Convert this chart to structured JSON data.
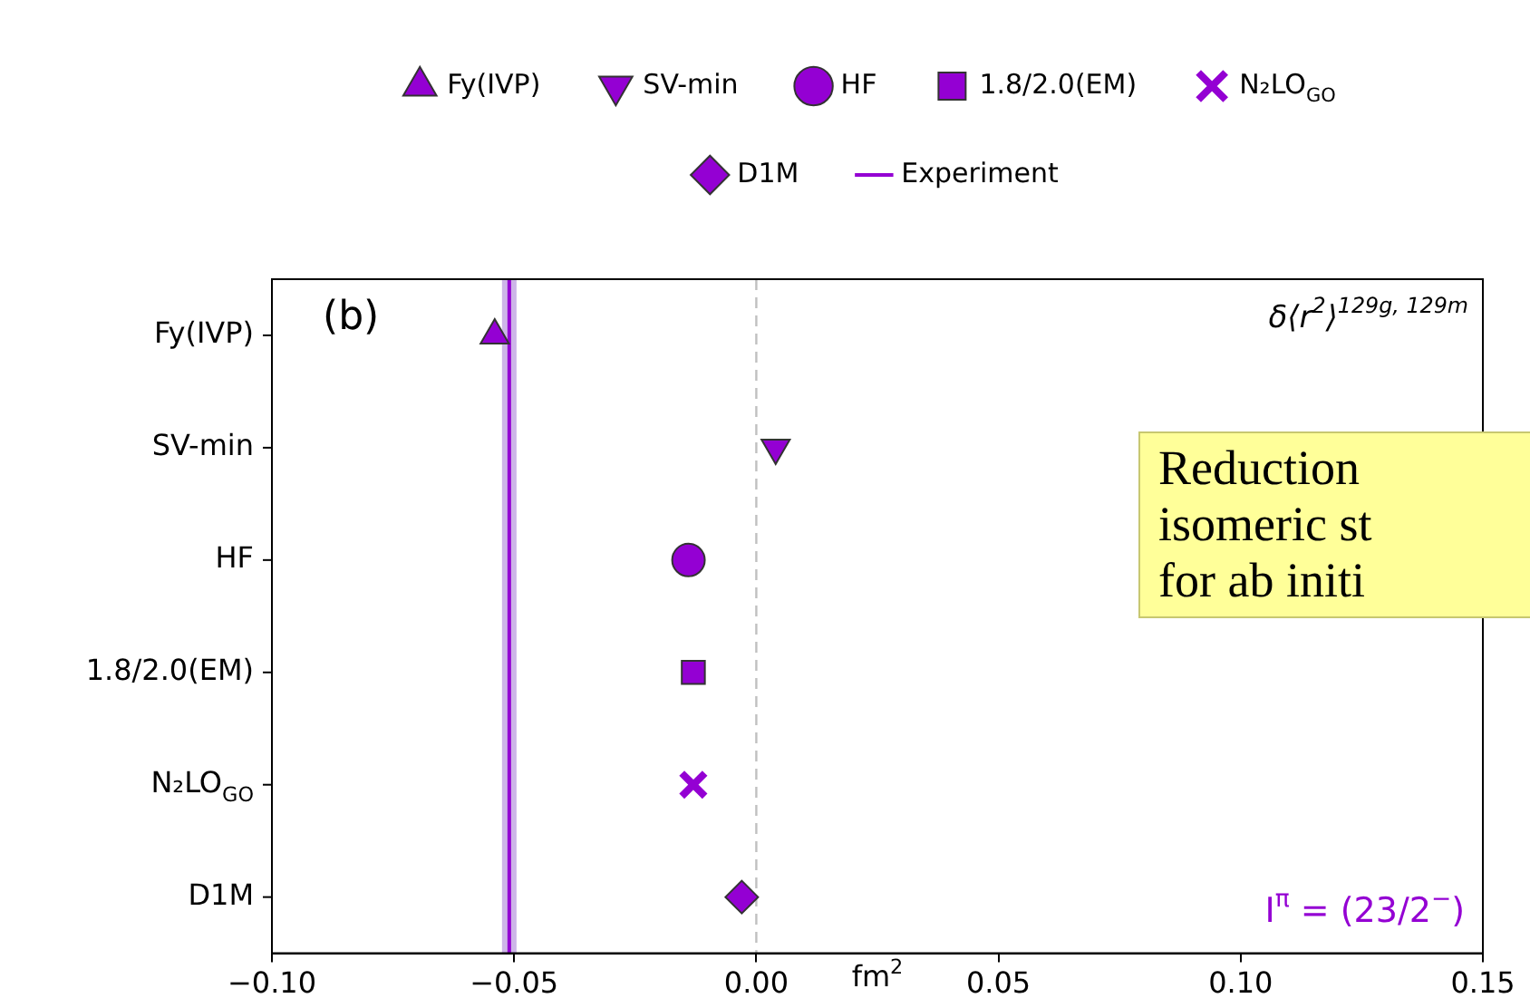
{
  "chart_data": {
    "type": "scatter",
    "orientation": "horizontal",
    "xlabel": "fm$^{2}$",
    "categories": [
      "Fy(IVP)",
      "SV-min",
      "HF",
      "1.8/2.0(EM)",
      "N₂LO$_{GO}$",
      "D1M"
    ],
    "xlim": [
      -0.1,
      0.15
    ],
    "xticks": [
      {
        "value": -0.1,
        "label": "−0.10"
      },
      {
        "value": -0.05,
        "label": "−0.05"
      },
      {
        "value": 0,
        "label": "0.00"
      },
      {
        "value": 0.05,
        "label": "0.05"
      },
      {
        "value": 0.1,
        "label": "0.10"
      },
      {
        "value": 0.15,
        "label": "0.15"
      }
    ],
    "grid": false,
    "legend": "top",
    "series": [
      {
        "name": "Fy(IVP)",
        "color": "#9400d3",
        "marker": "triangle",
        "values": [
          -0.054,
          null,
          null,
          null,
          null,
          null
        ]
      },
      {
        "name": "SV-min",
        "color": "#9400d3",
        "marker": "triangle-down",
        "values": [
          null,
          0.004,
          null,
          null,
          null,
          null
        ]
      },
      {
        "name": "HF",
        "color": "#9400d3",
        "marker": "circle",
        "values": [
          null,
          null,
          -0.014,
          null,
          null,
          null
        ]
      },
      {
        "name": "1.8/2.0(EM)",
        "color": "#9400d3",
        "marker": "square",
        "values": [
          null,
          null,
          null,
          -0.013,
          null,
          null
        ]
      },
      {
        "name": "N₂LO$_{GO}$",
        "color": "#9400d3",
        "marker": "cross",
        "values": [
          null,
          null,
          null,
          null,
          -0.013,
          null
        ]
      },
      {
        "name": "D1M",
        "color": "#9400d3",
        "marker": "diamond",
        "values": [
          null,
          null,
          null,
          null,
          null,
          -0.003
        ]
      }
    ],
    "ref_lines": [
      {
        "axis": "x",
        "value": -0.051,
        "label": "Experiment",
        "color": "#9400d3",
        "line_style": "solid"
      },
      {
        "axis": "x",
        "value": 0,
        "color": "#c0c0c0",
        "line_style": "dashed"
      }
    ],
    "bands": [
      {
        "axis": "x",
        "from": -0.0525,
        "to": -0.0495,
        "color": "#cdb5e8"
      }
    ],
    "annotations": [
      "(b)",
      "δ⟨r$^{2}$⟩$^{129g, 129m}$",
      "I$^{π}$ = (23/2$^{−}$)",
      "Reduction\nisomeric st\nfor ab initi"
    ]
  }
}
